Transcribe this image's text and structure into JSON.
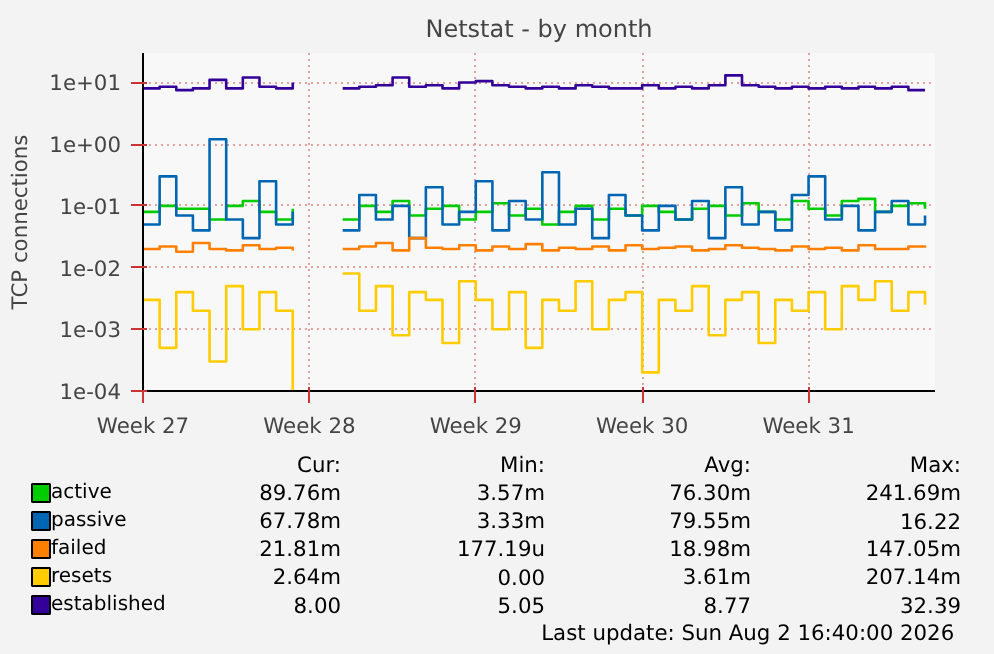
{
  "chart_data": {
    "type": "step",
    "title": "Netstat - by month",
    "ylabel": "TCP connections",
    "x": [
      "2026-06-29T00:00",
      "2026-06-29T16:48",
      "2026-06-30T09:36",
      "2026-07-01T02:24",
      "2026-07-01T19:12",
      "2026-07-02T12:00",
      "2026-07-03T04:48",
      "2026-07-03T21:36",
      "2026-07-04T14:24",
      "2026-07-05T07:12",
      "2026-07-06T00:00",
      "2026-07-06T16:48",
      "2026-07-07T09:36",
      "2026-07-08T02:24",
      "2026-07-08T19:12",
      "2026-07-09T12:00",
      "2026-07-10T04:48",
      "2026-07-10T21:36",
      "2026-07-11T14:24",
      "2026-07-12T07:12",
      "2026-07-13T00:00",
      "2026-07-13T16:48",
      "2026-07-14T09:36",
      "2026-07-15T02:24",
      "2026-07-15T19:12",
      "2026-07-16T12:00",
      "2026-07-17T04:48",
      "2026-07-17T21:36",
      "2026-07-18T14:24",
      "2026-07-19T07:12",
      "2026-07-20T00:00",
      "2026-07-20T16:48",
      "2026-07-21T09:36",
      "2026-07-22T02:24",
      "2026-07-22T19:12",
      "2026-07-23T12:00",
      "2026-07-24T04:48",
      "2026-07-24T21:36",
      "2026-07-25T14:24",
      "2026-07-26T07:12",
      "2026-07-27T00:00",
      "2026-07-27T16:48",
      "2026-07-28T09:36",
      "2026-07-29T02:24",
      "2026-07-29T19:12",
      "2026-07-30T12:00",
      "2026-07-31T04:48",
      "2026-07-31T21:36"
    ],
    "xlim": [
      "2026-06-29T00:00",
      "2026-08-01T07:40"
    ],
    "xticks": [
      {
        "value": "2026-06-29",
        "label": "Week 27"
      },
      {
        "value": "2026-07-06",
        "label": "Week 28"
      },
      {
        "value": "2026-07-13",
        "label": "Week 29"
      },
      {
        "value": "2026-07-20",
        "label": "Week 30"
      },
      {
        "value": "2026-07-27",
        "label": "Week 31"
      }
    ],
    "log": true,
    "ylim": [
      0.0001,
      30
    ],
    "yticks": [
      {
        "value": 0.0001,
        "label": "1e-04"
      },
      {
        "value": 0.001,
        "label": "1e-03"
      },
      {
        "value": 0.01,
        "label": "1e-02"
      },
      {
        "value": 0.1,
        "label": "1e-01"
      },
      {
        "value": 1,
        "label": "1e+00"
      },
      {
        "value": 10,
        "label": "1e+01"
      }
    ],
    "grid": true,
    "legend": "bottom",
    "series": [
      {
        "name": "active",
        "color": "#00cc00",
        "values": [
          0.08,
          0.1,
          0.09,
          0.09,
          0.06,
          0.1,
          0.12,
          0.08,
          0.06,
          0.09,
          null,
          null,
          0.06,
          0.1,
          0.08,
          0.12,
          0.07,
          0.09,
          0.1,
          0.06,
          0.08,
          0.11,
          0.07,
          0.09,
          0.05,
          0.08,
          0.1,
          0.06,
          0.09,
          0.07,
          0.1,
          0.08,
          0.06,
          0.09,
          0.1,
          0.07,
          0.11,
          0.08,
          0.06,
          0.12,
          0.09,
          0.07,
          0.12,
          0.13,
          0.08,
          0.1,
          0.11,
          0.09
        ]
      },
      {
        "name": "passive",
        "color": "#0066b3",
        "values": [
          0.05,
          0.3,
          0.07,
          0.04,
          1.2,
          0.06,
          0.03,
          0.25,
          0.05,
          0.08,
          null,
          null,
          0.04,
          0.15,
          0.06,
          0.1,
          0.03,
          0.2,
          0.05,
          0.08,
          0.25,
          0.04,
          0.12,
          0.06,
          0.35,
          0.05,
          0.09,
          0.03,
          0.15,
          0.07,
          0.04,
          0.1,
          0.06,
          0.12,
          0.03,
          0.2,
          0.05,
          0.08,
          0.04,
          0.15,
          0.3,
          0.06,
          0.1,
          0.04,
          0.08,
          0.12,
          0.05,
          0.07
        ]
      },
      {
        "name": "failed",
        "color": "#ff8000",
        "values": [
          0.02,
          0.022,
          0.018,
          0.025,
          0.02,
          0.019,
          0.023,
          0.02,
          0.021,
          0.019,
          null,
          null,
          0.02,
          0.022,
          0.025,
          0.019,
          0.03,
          0.021,
          0.02,
          0.023,
          0.019,
          0.022,
          0.02,
          0.024,
          0.019,
          0.021,
          0.02,
          0.022,
          0.019,
          0.023,
          0.02,
          0.021,
          0.022,
          0.019,
          0.02,
          0.023,
          0.021,
          0.02,
          0.019,
          0.022,
          0.02,
          0.021,
          0.019,
          0.023,
          0.02,
          0.02,
          0.022,
          0.021
        ]
      },
      {
        "name": "resets",
        "color": "#ffcc00",
        "values": [
          0.003,
          0.0005,
          0.004,
          0.002,
          0.0003,
          0.005,
          0.001,
          0.004,
          0.002,
          0.0001,
          null,
          null,
          0.008,
          0.002,
          0.005,
          0.0008,
          0.004,
          0.003,
          0.0006,
          0.006,
          0.003,
          0.001,
          0.004,
          0.0005,
          0.003,
          0.002,
          0.006,
          0.001,
          0.003,
          0.004,
          0.0002,
          0.003,
          0.002,
          0.005,
          0.0008,
          0.003,
          0.004,
          0.0006,
          0.003,
          0.002,
          0.004,
          0.001,
          0.005,
          0.003,
          0.006,
          0.002,
          0.004,
          0.0025
        ]
      },
      {
        "name": "established",
        "color": "#330099",
        "values": [
          8,
          8.5,
          7.5,
          8,
          11,
          8,
          12,
          8.5,
          8,
          10,
          null,
          null,
          8,
          8.5,
          9,
          12,
          8.5,
          9,
          8,
          10,
          10.5,
          9,
          8.5,
          8,
          8.5,
          8,
          9,
          8.5,
          8,
          8,
          9,
          8,
          8.5,
          8,
          9,
          13,
          9,
          8.5,
          8,
          8.5,
          8,
          8.5,
          8,
          8.5,
          8,
          8.5,
          7.5,
          7.5
        ]
      }
    ],
    "annotations": [
      "Cur:",
      "Min:",
      "Avg:",
      "Max:",
      "89.76m",
      "3.57m",
      "76.30m",
      "241.69m",
      "67.78m",
      "3.33m",
      "79.55m",
      "16.22",
      "21.81m",
      "177.19u",
      "18.98m",
      "147.05m",
      "2.64m",
      "0.00",
      "3.61m",
      "207.14m",
      "8.00",
      "5.05",
      "8.77",
      "32.39",
      "Last update: Sun Aug  2 16:40:00 2026"
    ]
  }
}
